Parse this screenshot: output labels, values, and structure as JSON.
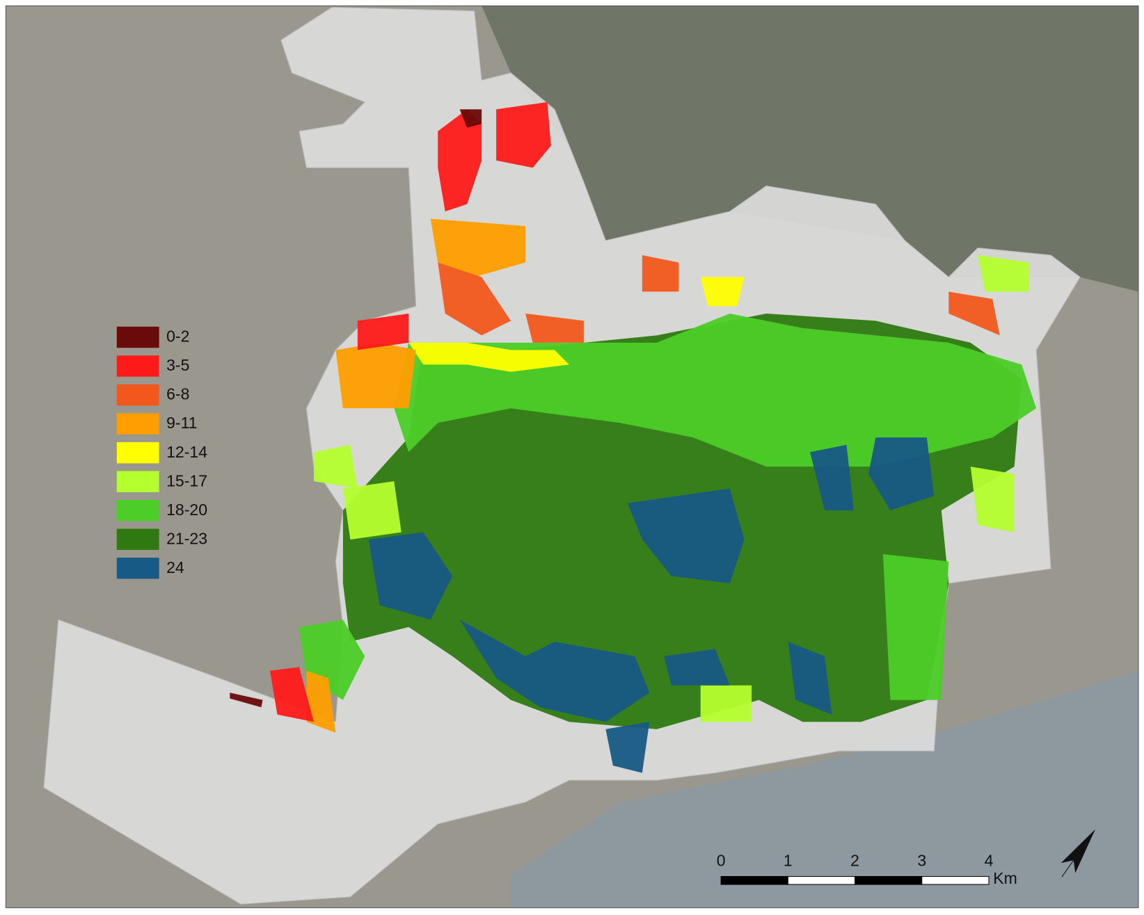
{
  "legend": {
    "items": [
      {
        "label": "0-2",
        "color": "#6b0a0a"
      },
      {
        "label": "3-5",
        "color": "#ff1a1a"
      },
      {
        "label": "6-8",
        "color": "#f2581c"
      },
      {
        "label": "9-11",
        "color": "#ff9e00"
      },
      {
        "label": "12-14",
        "color": "#ffff00"
      },
      {
        "label": "15-17",
        "color": "#b5ff2e"
      },
      {
        "label": "18-20",
        "color": "#4ccd27"
      },
      {
        "label": "21-23",
        "color": "#2e7a10"
      },
      {
        "label": "24",
        "color": "#175a85"
      }
    ]
  },
  "scale_bar": {
    "ticks": [
      0,
      1,
      2,
      3,
      4
    ],
    "unit": "Km"
  }
}
